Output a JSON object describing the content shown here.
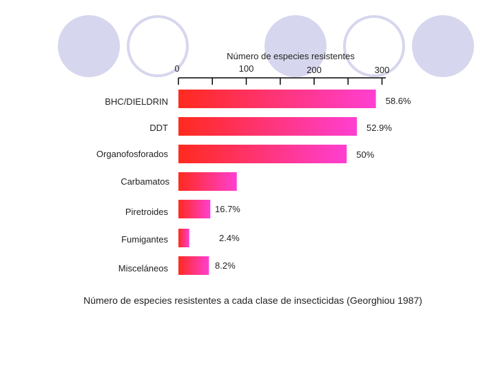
{
  "chart_data": {
    "type": "bar",
    "orientation": "horizontal",
    "title": "Número de especies resistentes",
    "caption": "Número de especies resistentes a cada clase de insecticidas (Georghiou 1987)",
    "categories": [
      "BHC/DIELDRIN",
      "DDT",
      "Organofosforados",
      "Carbamatos",
      "Piretroides",
      "Fumigantes",
      "Misceláneos"
    ],
    "values": [
      291,
      263,
      248,
      86,
      47,
      16,
      45
    ],
    "data_labels": [
      "58.6%",
      "52.9%",
      "50%",
      "",
      "16.7%",
      "2.4%",
      "8.2%"
    ],
    "xaxis_ticks": [
      "0",
      "100",
      "200",
      "300"
    ],
    "xlim": [
      0,
      300
    ],
    "colors": {
      "bar_start": "#ff2a1e",
      "bar_end": "#ff3fd2",
      "axis": "#000000"
    }
  }
}
